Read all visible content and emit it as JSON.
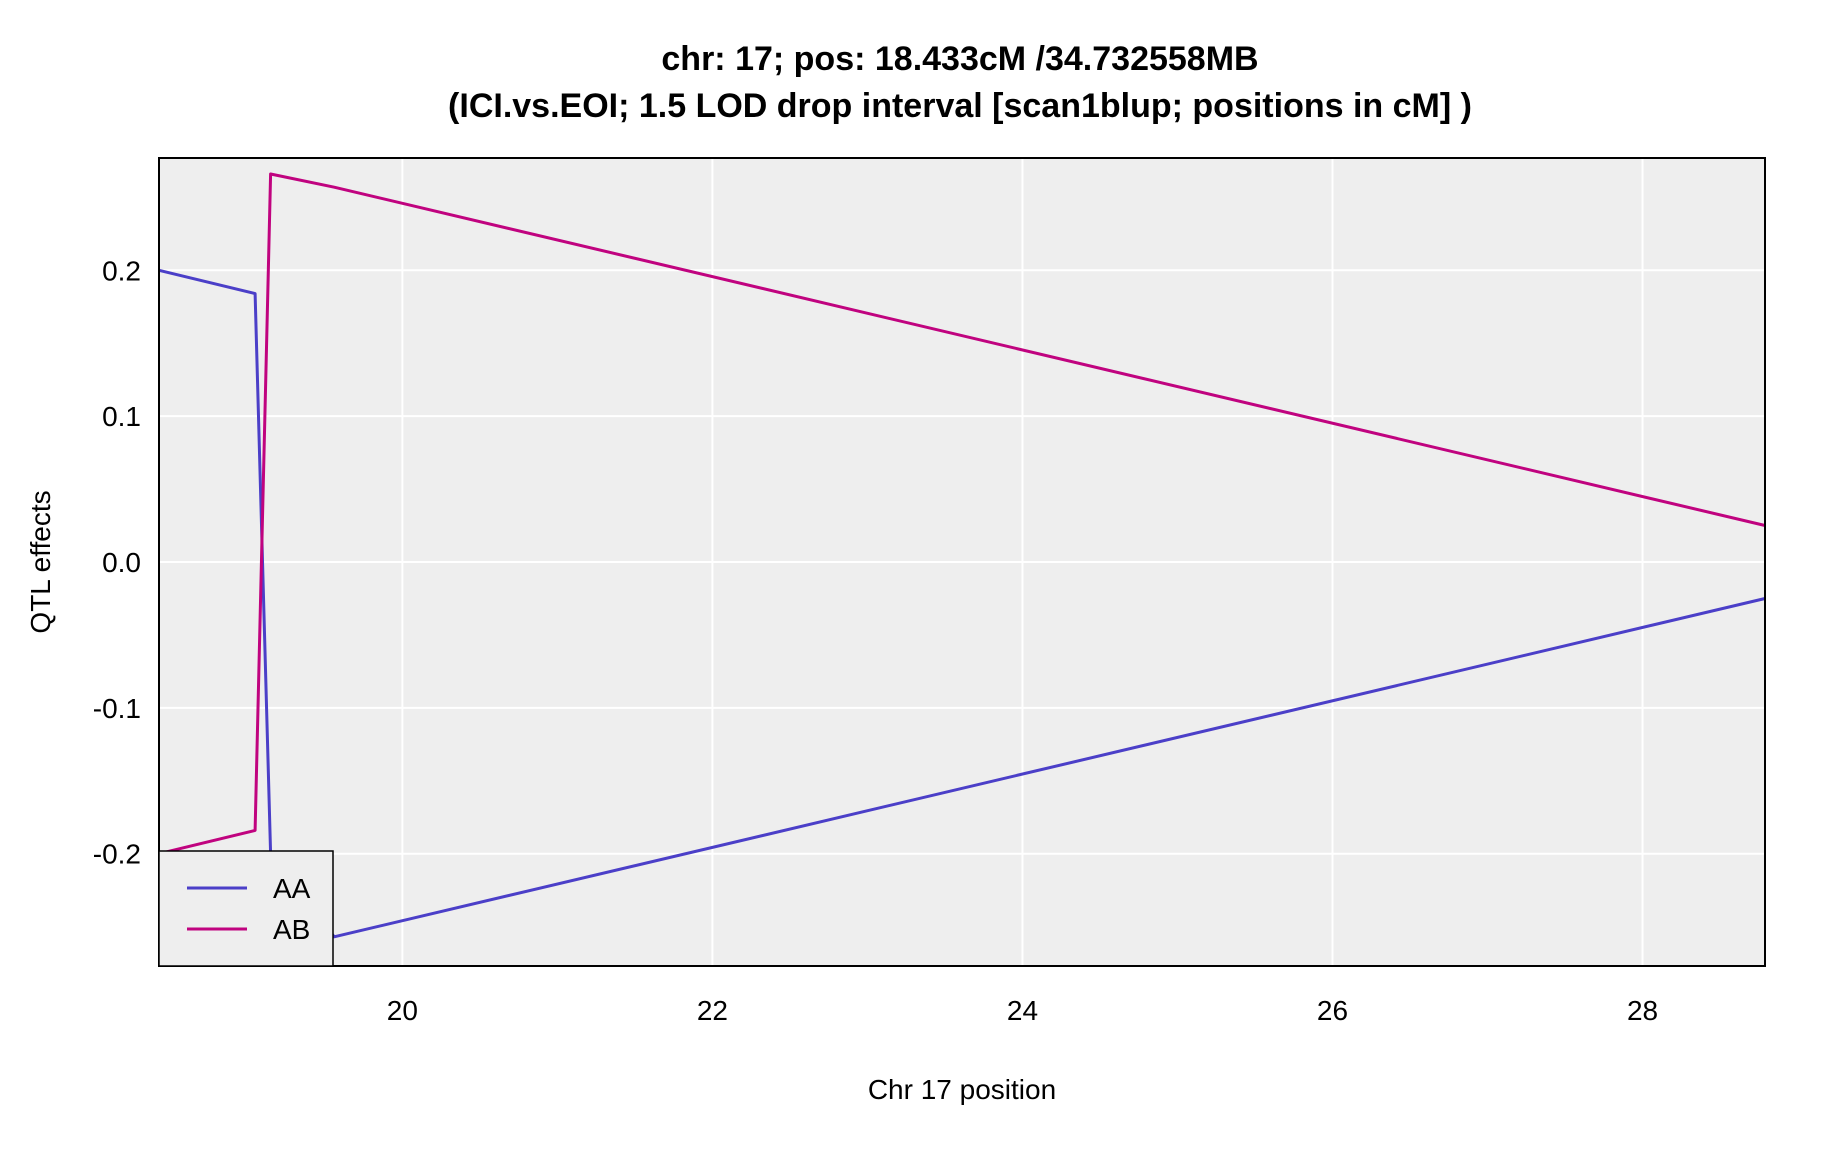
{
  "chart_data": {
    "type": "line",
    "title": "chr: 17; pos: 18.433cM /34.732558MB",
    "subtitle": "(ICI.vs.EOI; 1.5 LOD drop interval [scan1blup; positions in cM] )",
    "xlabel": "Chr 17 position",
    "ylabel": "QTL effects",
    "xlim": [
      18.43,
      28.79
    ],
    "ylim": [
      -0.277,
      0.277
    ],
    "x_ticks": [
      20,
      22,
      24,
      26,
      28
    ],
    "x_tick_labels": [
      "20",
      "22",
      "24",
      "26",
      "28"
    ],
    "y_ticks": [
      -0.2,
      -0.1,
      0.0,
      0.1,
      0.2
    ],
    "y_tick_labels": [
      "-0.2",
      "-0.1",
      "0.0",
      "0.1",
      "0.2"
    ],
    "grid": true,
    "background": "#eeeeee",
    "legend_position": "bottom-left",
    "series": [
      {
        "name": "AA",
        "color": "#4b3fc8",
        "x": [
          18.43,
          19.05,
          19.15,
          19.56,
          28.79
        ],
        "y": [
          0.2,
          0.184,
          -0.2,
          -0.257,
          -0.025
        ]
      },
      {
        "name": "AB",
        "color": "#c0037f",
        "x": [
          18.43,
          19.05,
          19.15,
          19.56,
          28.79
        ],
        "y": [
          -0.2,
          -0.184,
          0.266,
          0.257,
          0.025
        ]
      }
    ]
  }
}
